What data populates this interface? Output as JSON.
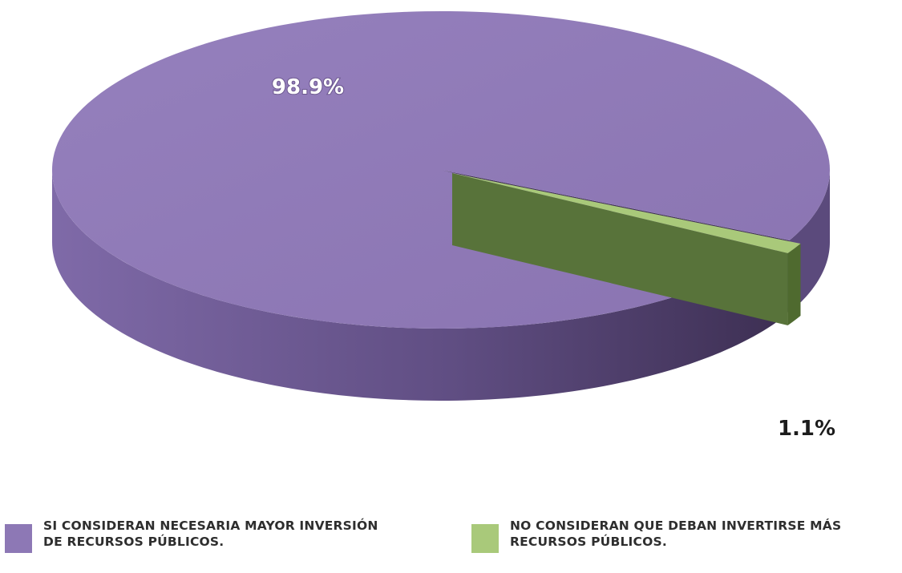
{
  "chart_data": {
    "type": "pie",
    "style": "3d",
    "slices": [
      {
        "value": 98.9,
        "label": "98.9%",
        "legend_lines": [
          "SI CONSIDERAN NECESARIA MAYOR INVERSIÓN",
          "DE RECURSOS PÚBLICOS."
        ],
        "color": "#8d78b5"
      },
      {
        "value": 1.1,
        "label": "1.1%",
        "legend_lines": [
          "NO CONSIDERAN QUE DEBAN INVERTIRSE MÁS",
          "RECURSOS PÚBLICOS."
        ],
        "color": "#a9c97a"
      }
    ],
    "legend_position": "bottom",
    "colors": {
      "slice_0_top": "#8d78b5",
      "slice_0_side": "#5b4a7c",
      "slice_1_top": "#a9c97a",
      "slice_1_side": "#4f6a2f"
    }
  }
}
